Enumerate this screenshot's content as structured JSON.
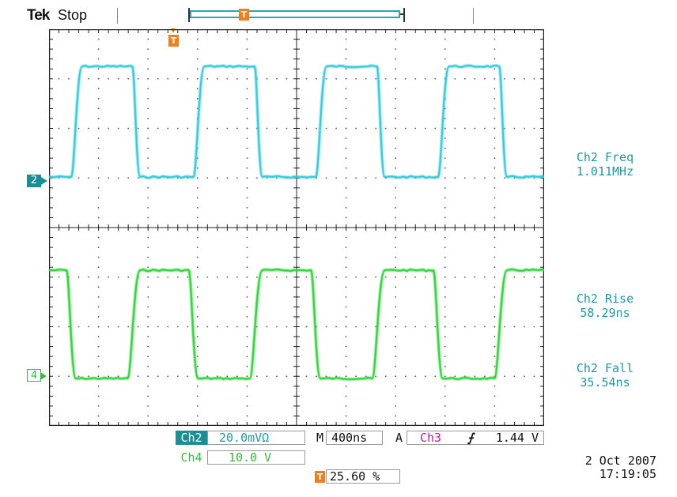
{
  "header": {
    "brand": "Tek",
    "status": "Stop",
    "trigger_marker": "T"
  },
  "channels": {
    "ch2": {
      "marker": "2",
      "color": "#33ccdd",
      "label_bg": "#1b8d95"
    },
    "ch4": {
      "marker": "4",
      "color": "#2fd63a"
    }
  },
  "measurements": [
    {
      "name": "Ch2 Freq",
      "value": "1.011MHz"
    },
    {
      "name": "Ch2 Rise",
      "value": "58.29ns"
    },
    {
      "name": "Ch2 Fall",
      "value": "35.54ns"
    }
  ],
  "readout": {
    "ch2_label": "Ch2",
    "ch2_scale": "20.0mVΩ",
    "ch4_label": "Ch4",
    "ch4_scale": "10.0 V",
    "timebase_label": "M",
    "timebase": "400ns",
    "trigger_label": "A",
    "trigger_source": "Ch3",
    "trigger_slope": "⨍",
    "trigger_level": "1.44 V",
    "trigger_pos_marker": "T",
    "trigger_pos": "25.60 %",
    "date": "2 Oct  2007",
    "time": "17:19:05"
  },
  "colors": {
    "ch2_text": "#1a9aa8",
    "ch3_text": "#b51db5",
    "ch4_text": "#2fbf3b",
    "trigger": "#ee7f1c",
    "grid": "#222222"
  },
  "display": {
    "divisions_x": 10,
    "divisions_y": 8,
    "waveform_period_divisions": 2.47
  }
}
